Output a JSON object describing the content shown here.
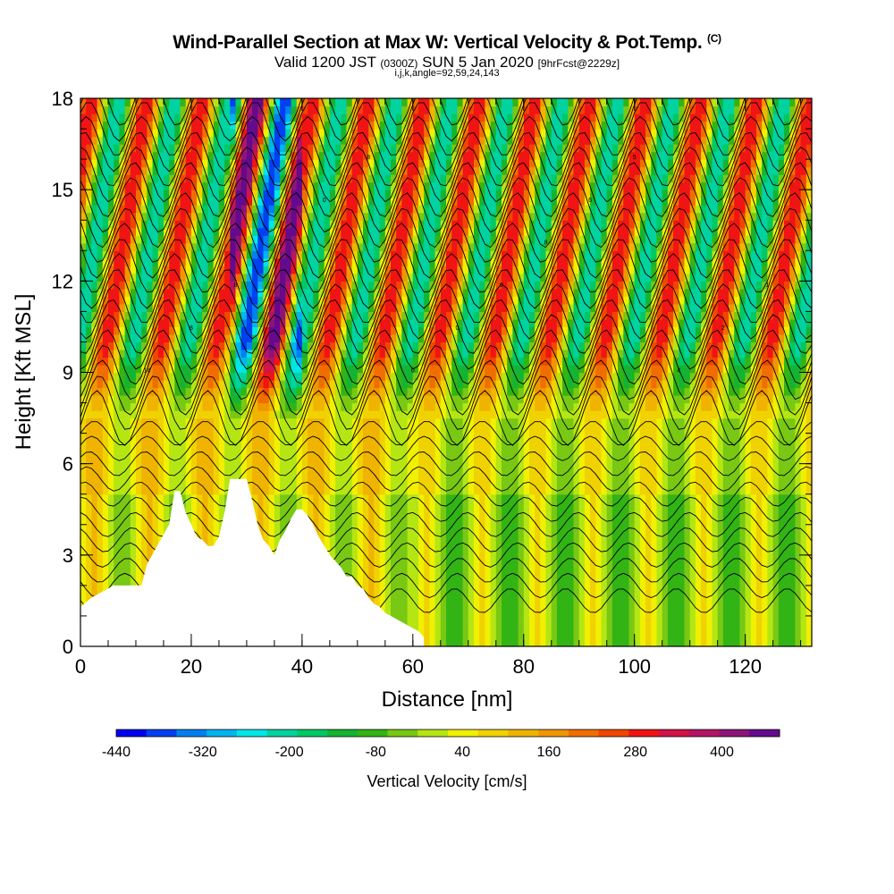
{
  "header": {
    "title": "Wind-Parallel Section at Max W: Vertical Velocity & Pot.Temp.",
    "copyright": "(C)",
    "valid_prefix": "Valid 1200 JST",
    "valid_utc": "(0300Z)",
    "valid_date": "SUN 5 Jan 2020",
    "forecast": "[9hrFcst@2229z]",
    "indices": "i,j,k,angle=92,59,24,143"
  },
  "colors": {
    "palette": [
      "#0000f0",
      "#0040f0",
      "#0080f0",
      "#00b4f0",
      "#00e6e6",
      "#00d2a0",
      "#00c864",
      "#14b432",
      "#32b414",
      "#78c814",
      "#b4e614",
      "#f0f000",
      "#f0d200",
      "#f0b400",
      "#f09600",
      "#f06e00",
      "#f04600",
      "#f01414",
      "#d21446",
      "#b41464",
      "#8c1478",
      "#640a8c"
    ],
    "terrain": "#ffffff",
    "contour": "#000000"
  },
  "chart_data": {
    "type": "heatmap",
    "xlabel": "Distance [nm]",
    "ylabel": "Height [Kft MSL]",
    "xlim": [
      0,
      132
    ],
    "ylim": [
      0,
      18
    ],
    "xticks": [
      "0",
      "20",
      "40",
      "60",
      "80",
      "100",
      "120"
    ],
    "yticks": [
      "0",
      "3",
      "6",
      "9",
      "12",
      "15",
      "18"
    ],
    "colorbar": {
      "label": "Vertical Velocity [cm/s]",
      "min": -440,
      "max": 480,
      "step": 40,
      "tick_labels": [
        "-440",
        "-320",
        "-200",
        "-80",
        "40",
        "160",
        "280",
        "400"
      ]
    },
    "terrain_profile": {
      "x": [
        0,
        2,
        5,
        6,
        11,
        12,
        16,
        17,
        18,
        19,
        20,
        21,
        22,
        23,
        24,
        25,
        26,
        27,
        28,
        29,
        30,
        31,
        32,
        33,
        34,
        35,
        36,
        37,
        38,
        39,
        40,
        41,
        42,
        43,
        44,
        45,
        46,
        47,
        48,
        49,
        50,
        51,
        52,
        53,
        54,
        55,
        56,
        57,
        58,
        59,
        60,
        61,
        62
      ],
      "height": [
        1.3,
        1.6,
        1.9,
        2.0,
        2.0,
        2.7,
        4.0,
        5.1,
        5.1,
        4.4,
        4.0,
        3.6,
        3.5,
        3.3,
        3.3,
        3.6,
        4.4,
        5.5,
        5.5,
        5.5,
        5.5,
        4.8,
        4.0,
        3.5,
        3.3,
        3.0,
        3.5,
        3.8,
        4.2,
        4.5,
        4.5,
        4.3,
        4.0,
        3.6,
        3.3,
        3.0,
        2.8,
        2.6,
        2.3,
        2.3,
        2.0,
        1.9,
        1.6,
        1.4,
        1.3,
        1.1,
        1.0,
        0.9,
        0.8,
        0.7,
        0.6,
        0.5,
        0.3
      ]
    },
    "updraft_bands_x": [
      14,
      26,
      31,
      36,
      48,
      54,
      58,
      64,
      72,
      80,
      88,
      96,
      104,
      112,
      120,
      128
    ],
    "contour_labels": [
      "14",
      "8",
      "8",
      "2",
      "0",
      "8",
      "0",
      "0",
      "0",
      "8",
      "6",
      "5",
      "4",
      "2",
      "1"
    ]
  }
}
